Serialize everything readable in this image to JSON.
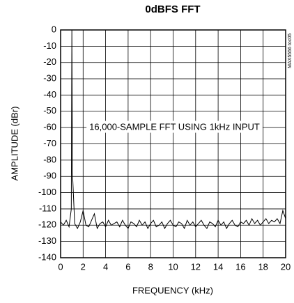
{
  "chart_data": {
    "type": "line",
    "title": "0dBFS FFT",
    "x_label": "FREQUENCY (kHz)",
    "y_label": "AMPLITUDE (dBr)",
    "annotation": "16,000-SAMPLE FFT USING 1kHz INPUT",
    "side_note": "MAX5556 toc05",
    "color": "#000000",
    "grid": true,
    "xlim": [
      0,
      20
    ],
    "ylim": [
      -140,
      0
    ],
    "xticks": [
      0,
      2,
      4,
      6,
      8,
      10,
      12,
      14,
      16,
      18,
      20
    ],
    "yticks": [
      0,
      -10,
      -20,
      -30,
      -40,
      -50,
      -60,
      -70,
      -80,
      -90,
      -100,
      -110,
      -120,
      -130,
      -140
    ],
    "x": [
      0,
      0.25,
      0.5,
      0.75,
      0.95,
      1,
      1.05,
      1.25,
      1.5,
      1.75,
      2,
      2.25,
      2.5,
      2.75,
      3,
      3.25,
      3.5,
      3.75,
      4,
      4.25,
      4.5,
      4.75,
      5,
      5.25,
      5.5,
      5.75,
      6,
      6.25,
      6.5,
      6.75,
      7,
      7.25,
      7.5,
      7.75,
      8,
      8.25,
      8.5,
      8.75,
      9,
      9.25,
      9.5,
      9.75,
      10,
      10.25,
      10.5,
      10.75,
      11,
      11.25,
      11.5,
      11.75,
      12,
      12.25,
      12.5,
      12.75,
      13,
      13.25,
      13.5,
      13.75,
      14,
      14.25,
      14.5,
      14.75,
      15,
      15.25,
      15.5,
      15.75,
      16,
      16.25,
      16.5,
      16.75,
      17,
      17.25,
      17.5,
      17.75,
      18,
      18.25,
      18.5,
      18.75,
      19,
      19.25,
      19.5,
      19.75,
      20
    ],
    "values": [
      -118,
      -120,
      -117,
      -121,
      -110,
      0,
      -87,
      -119,
      -122,
      -118,
      -111,
      -120,
      -121,
      -117,
      -113,
      -122,
      -119,
      -118,
      -121,
      -117,
      -120,
      -119,
      -118,
      -121,
      -117,
      -120,
      -122,
      -118,
      -119,
      -121,
      -117,
      -120,
      -118,
      -122,
      -119,
      -117,
      -121,
      -120,
      -118,
      -122,
      -119,
      -117,
      -120,
      -121,
      -118,
      -119,
      -122,
      -117,
      -120,
      -118,
      -121,
      -119,
      -117,
      -120,
      -122,
      -118,
      -119,
      -121,
      -117,
      -120,
      -118,
      -122,
      -119,
      -117,
      -120,
      -121,
      -118,
      -119,
      -117,
      -120,
      -116,
      -119,
      -117,
      -120,
      -118,
      -116,
      -119,
      -117,
      -118,
      -116,
      -119,
      -111,
      -116
    ]
  }
}
